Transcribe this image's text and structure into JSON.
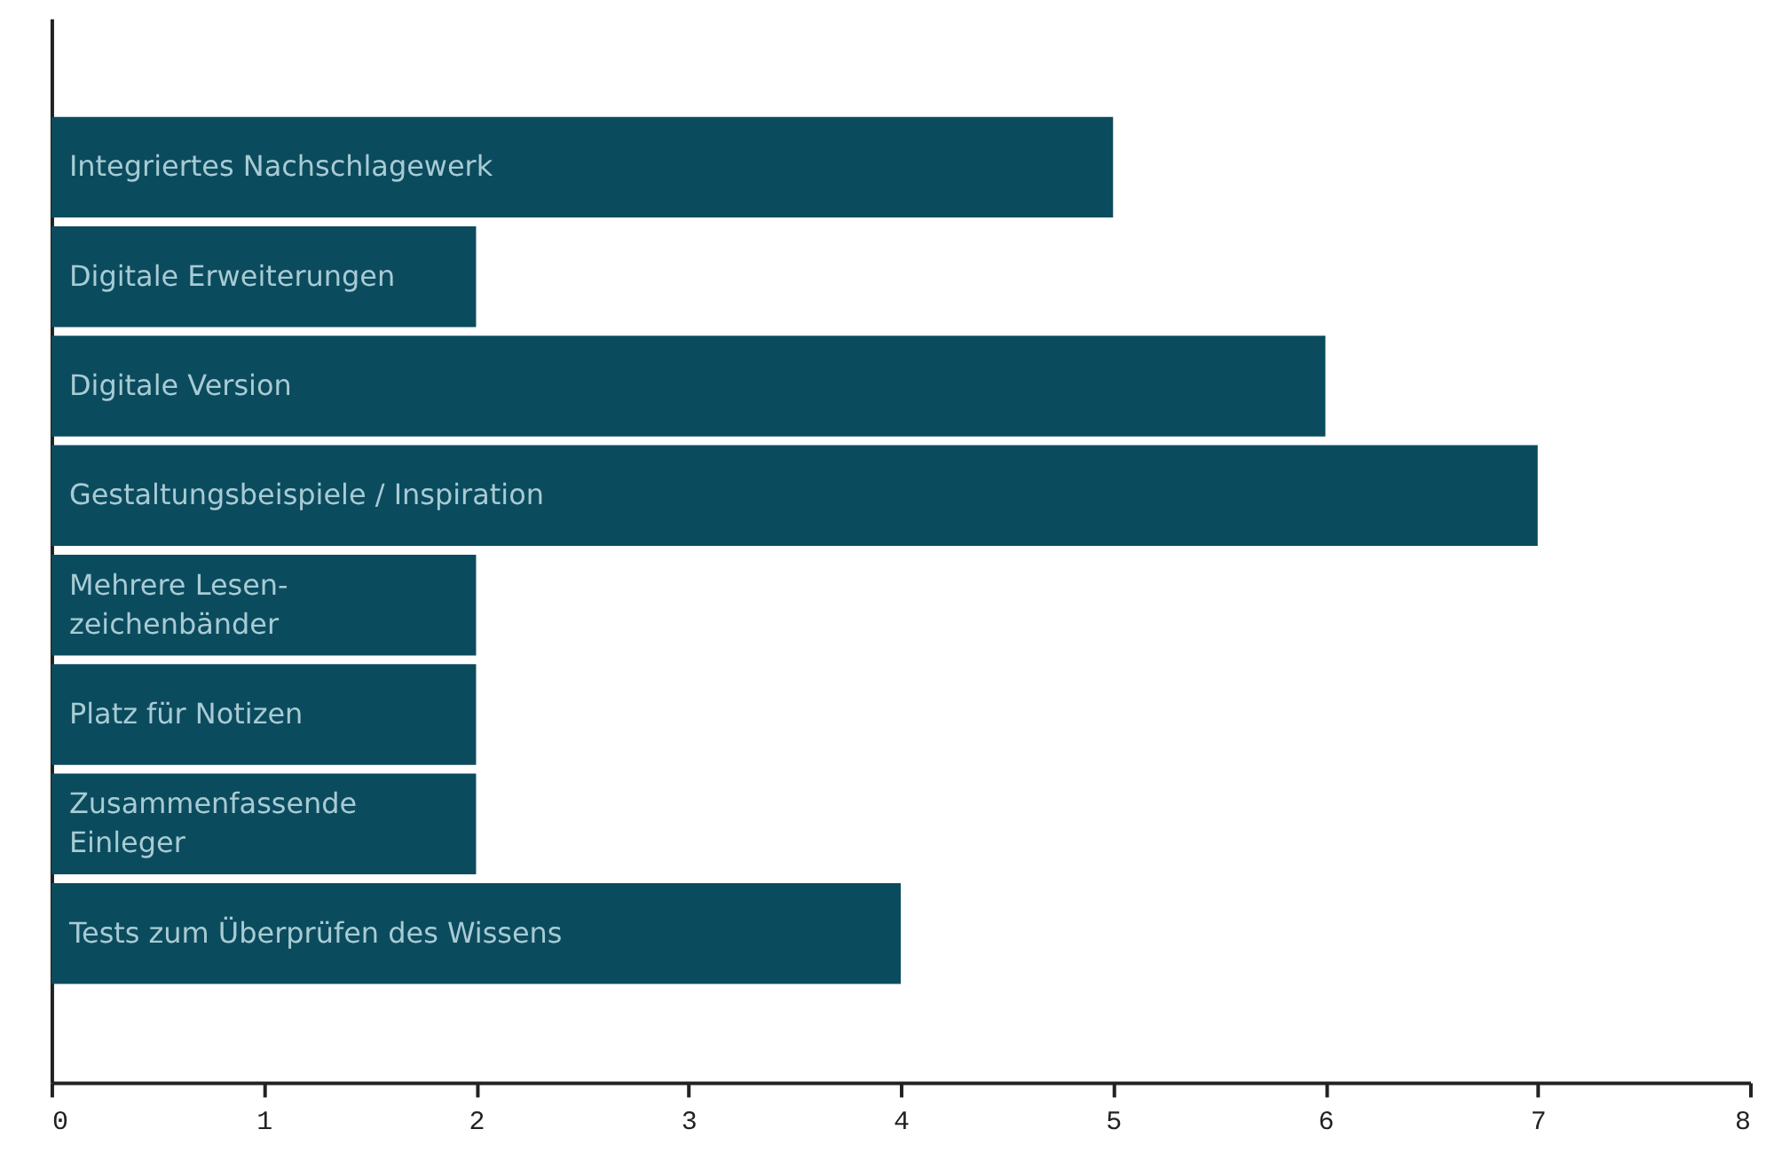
{
  "chart_data": {
    "type": "bar",
    "orientation": "horizontal",
    "categories": [
      "Integriertes Nachschlagewerk",
      "Digitale Erweiterungen",
      "Digitale Version",
      "Gestaltungsbeispiele / Inspiration",
      "Mehrere Lesen-\nzeichenbänder",
      "Platz für Notizen",
      "Zusammenfassende\nEinleger",
      "Tests zum Überprüfen des Wissens"
    ],
    "values": [
      5,
      2,
      6,
      7,
      2,
      2,
      2,
      4
    ],
    "color": "#0b4b5e",
    "xlim": [
      0,
      8
    ],
    "xticks": [
      0,
      1,
      2,
      3,
      4,
      5,
      6,
      7,
      8
    ],
    "grid": false,
    "tick_labels": "x"
  }
}
